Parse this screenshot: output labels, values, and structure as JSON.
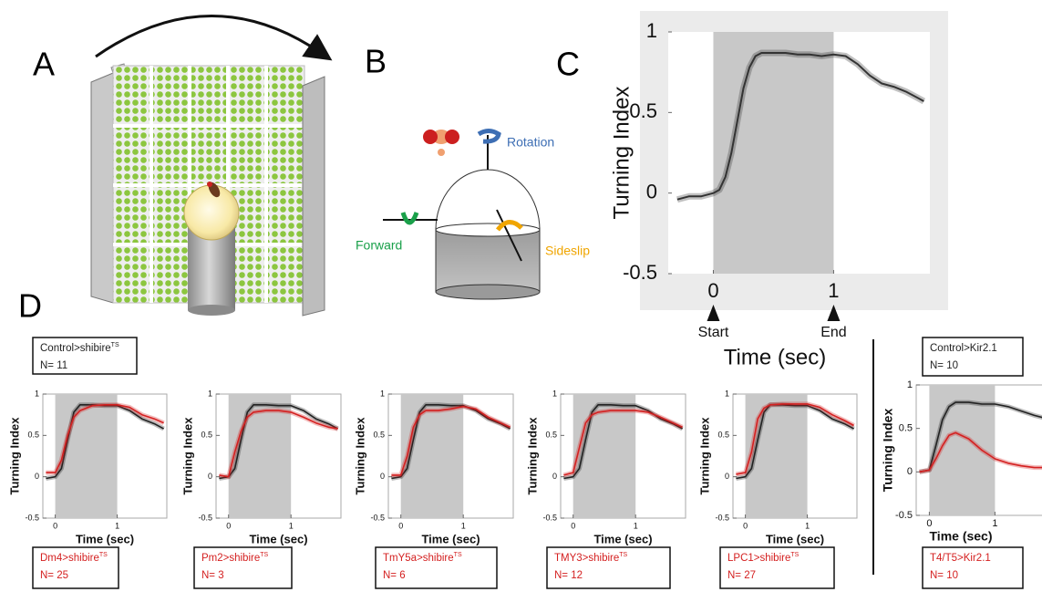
{
  "panels": [
    "A",
    "B",
    "C",
    "D"
  ],
  "diagram": {
    "rotation": "Rotation",
    "forward": "Forward",
    "sideslip": "Sideslip"
  },
  "chart_data": [
    {
      "type": "line",
      "xlabel": "Time (sec)",
      "ylabel": "Turning Index",
      "x": [
        -0.3,
        -0.2,
        -0.1,
        0,
        0.05,
        0.1,
        0.15,
        0.2,
        0.25,
        0.3,
        0.35,
        0.4,
        0.5,
        0.6,
        0.7,
        0.8,
        0.9,
        1.0,
        1.1,
        1.2,
        1.3,
        1.4,
        1.5,
        1.6,
        1.7,
        1.75
      ],
      "series": [
        {
          "color": "#333333",
          "values": [
            -0.04,
            -0.02,
            -0.02,
            0.0,
            0.02,
            0.1,
            0.25,
            0.45,
            0.65,
            0.78,
            0.85,
            0.87,
            0.87,
            0.87,
            0.86,
            0.86,
            0.85,
            0.86,
            0.85,
            0.8,
            0.73,
            0.68,
            0.66,
            0.63,
            0.59,
            0.57
          ]
        }
      ],
      "xlim": [
        -0.375,
        1.8
      ],
      "ylim": [
        -0.5,
        1
      ],
      "xticks": [
        0,
        1
      ],
      "yticks": [
        -0.5,
        0,
        0.5,
        1
      ],
      "stimulus": [
        0,
        1
      ],
      "events": [
        {
          "value": 0,
          "label": "Start"
        },
        {
          "value": 1,
          "label": "End"
        }
      ]
    },
    {
      "type": "line",
      "xlabel": "Time (sec)",
      "ylabel": "Turning Index",
      "x": [
        -0.15,
        0,
        0.1,
        0.2,
        0.3,
        0.4,
        0.6,
        0.8,
        1.0,
        1.2,
        1.4,
        1.6,
        1.75
      ],
      "series": [
        {
          "name": "Control>shibire",
          "superscript": "TS",
          "n_label": "N= 11",
          "color": "#222222",
          "values": [
            -0.02,
            0.0,
            0.1,
            0.45,
            0.78,
            0.87,
            0.87,
            0.86,
            0.86,
            0.8,
            0.7,
            0.64,
            0.58
          ]
        },
        {
          "name": "Dm4>shibire",
          "superscript": "TS",
          "n_label": "N= 25",
          "color": "#d42020",
          "values": [
            0.05,
            0.05,
            0.2,
            0.5,
            0.72,
            0.8,
            0.86,
            0.87,
            0.87,
            0.84,
            0.75,
            0.7,
            0.65
          ]
        }
      ],
      "xlim": [
        -0.2,
        1.8
      ],
      "ylim": [
        -0.5,
        1
      ],
      "xticks": [
        0,
        1
      ],
      "yticks": [
        -0.5,
        0,
        0.5,
        1
      ],
      "stimulus": [
        0,
        1
      ]
    },
    {
      "type": "line",
      "xlabel": "Time (sec)",
      "ylabel": "Turning Index",
      "x": [
        -0.15,
        0,
        0.1,
        0.2,
        0.3,
        0.4,
        0.6,
        0.8,
        1.0,
        1.2,
        1.4,
        1.6,
        1.75
      ],
      "series": [
        {
          "color": "#222222",
          "values": [
            -0.02,
            0.0,
            0.1,
            0.45,
            0.78,
            0.87,
            0.87,
            0.86,
            0.86,
            0.8,
            0.7,
            0.64,
            0.58
          ]
        },
        {
          "name": "Pm2>shibire",
          "superscript": "TS",
          "n_label": "N= 3",
          "color": "#d42020",
          "values": [
            0.02,
            0.0,
            0.3,
            0.55,
            0.72,
            0.78,
            0.8,
            0.8,
            0.78,
            0.72,
            0.65,
            0.6,
            0.58
          ]
        }
      ],
      "xlim": [
        -0.2,
        1.8
      ],
      "ylim": [
        -0.5,
        1
      ],
      "xticks": [
        0,
        1
      ],
      "yticks": [
        -0.5,
        0,
        0.5,
        1
      ],
      "stimulus": [
        0,
        1
      ]
    },
    {
      "type": "line",
      "xlabel": "Time (sec)",
      "ylabel": "Turning Index",
      "x": [
        -0.15,
        0,
        0.1,
        0.2,
        0.3,
        0.4,
        0.6,
        0.8,
        1.0,
        1.2,
        1.4,
        1.6,
        1.75
      ],
      "series": [
        {
          "color": "#222222",
          "values": [
            -0.02,
            0.0,
            0.1,
            0.45,
            0.78,
            0.87,
            0.87,
            0.86,
            0.86,
            0.8,
            0.7,
            0.64,
            0.58
          ]
        },
        {
          "name": "TmY5a>shibire",
          "superscript": "TS",
          "n_label": "N= 6",
          "color": "#d42020",
          "values": [
            0.02,
            0.02,
            0.25,
            0.6,
            0.75,
            0.8,
            0.8,
            0.82,
            0.85,
            0.82,
            0.72,
            0.65,
            0.6
          ]
        }
      ],
      "xlim": [
        -0.2,
        1.8
      ],
      "ylim": [
        -0.5,
        1
      ],
      "xticks": [
        0,
        1
      ],
      "yticks": [
        -0.5,
        0,
        0.5,
        1
      ],
      "stimulus": [
        0,
        1
      ]
    },
    {
      "type": "line",
      "xlabel": "Time (sec)",
      "ylabel": "Turning Index",
      "x": [
        -0.15,
        0,
        0.1,
        0.2,
        0.3,
        0.4,
        0.6,
        0.8,
        1.0,
        1.2,
        1.4,
        1.6,
        1.75
      ],
      "series": [
        {
          "color": "#222222",
          "values": [
            -0.02,
            0.0,
            0.1,
            0.45,
            0.78,
            0.87,
            0.87,
            0.86,
            0.86,
            0.8,
            0.7,
            0.64,
            0.58
          ]
        },
        {
          "name": "TMY3>shibire",
          "superscript": "TS",
          "n_label": "N= 12",
          "color": "#d42020",
          "values": [
            0.02,
            0.05,
            0.35,
            0.65,
            0.75,
            0.78,
            0.8,
            0.8,
            0.8,
            0.78,
            0.72,
            0.65,
            0.6
          ]
        }
      ],
      "xlim": [
        -0.2,
        1.8
      ],
      "ylim": [
        -0.5,
        1
      ],
      "xticks": [
        0,
        1
      ],
      "yticks": [
        -0.5,
        0,
        0.5,
        1
      ],
      "stimulus": [
        0,
        1
      ]
    },
    {
      "type": "line",
      "xlabel": "Time (sec)",
      "ylabel": "Turning Index",
      "x": [
        -0.15,
        0,
        0.1,
        0.2,
        0.3,
        0.4,
        0.6,
        0.8,
        1.0,
        1.2,
        1.4,
        1.6,
        1.75
      ],
      "series": [
        {
          "color": "#222222",
          "values": [
            -0.02,
            0.0,
            0.1,
            0.45,
            0.78,
            0.87,
            0.87,
            0.86,
            0.86,
            0.8,
            0.7,
            0.64,
            0.58
          ]
        },
        {
          "name": "LPC1>shibire",
          "superscript": "TS",
          "n_label": "N= 27",
          "color": "#d42020",
          "values": [
            0.03,
            0.05,
            0.3,
            0.7,
            0.83,
            0.87,
            0.88,
            0.88,
            0.88,
            0.84,
            0.75,
            0.68,
            0.62
          ]
        }
      ],
      "xlim": [
        -0.2,
        1.8
      ],
      "ylim": [
        -0.5,
        1
      ],
      "xticks": [
        0,
        1
      ],
      "yticks": [
        -0.5,
        0,
        0.5,
        1
      ],
      "stimulus": [
        0,
        1
      ]
    },
    {
      "type": "line",
      "xlabel": "Time (sec)",
      "ylabel": "Turning Index",
      "x": [
        -0.15,
        0,
        0.1,
        0.2,
        0.3,
        0.4,
        0.6,
        0.8,
        1.0,
        1.2,
        1.4,
        1.6,
        1.75
      ],
      "series": [
        {
          "name": "Control>Kir2.1",
          "n_label": "N= 10",
          "color": "#222222",
          "values": [
            0.0,
            0.02,
            0.3,
            0.6,
            0.75,
            0.8,
            0.8,
            0.78,
            0.78,
            0.75,
            0.7,
            0.65,
            0.62
          ]
        },
        {
          "name": "T4/T5>Kir2.1",
          "n_label": "N= 10",
          "color": "#d42020",
          "values": [
            0.0,
            0.02,
            0.15,
            0.3,
            0.42,
            0.45,
            0.38,
            0.25,
            0.15,
            0.1,
            0.07,
            0.05,
            0.05
          ]
        }
      ],
      "xlim": [
        -0.2,
        1.8
      ],
      "ylim": [
        -0.5,
        1
      ],
      "xticks": [
        0,
        1
      ],
      "yticks": [
        -0.5,
        0,
        0.5,
        1
      ],
      "stimulus": [
        0,
        1
      ]
    }
  ]
}
